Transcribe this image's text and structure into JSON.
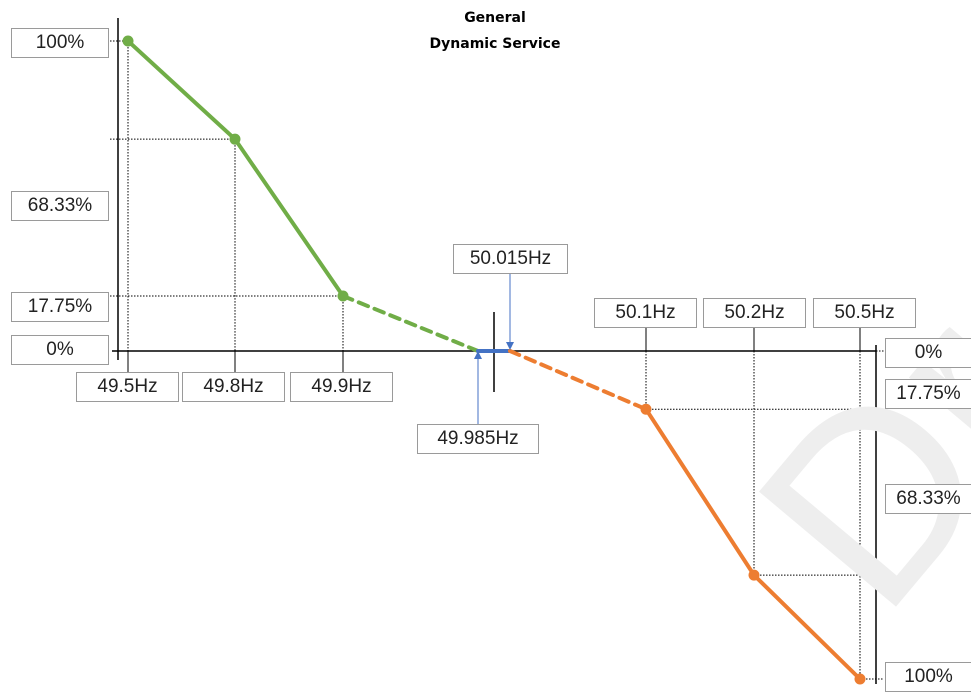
{
  "chart_data": {
    "type": "line",
    "title": "General",
    "subtitle": "Dynamic Service",
    "colors": {
      "low": "#70ad47",
      "high": "#ed7d31",
      "deadband": "#4472c4"
    },
    "series": [
      {
        "side": "low",
        "x": [
          "49.5Hz",
          "49.8Hz",
          "49.9Hz"
        ],
        "y": [
          "100%",
          "68.33%",
          "17.75%"
        ],
        "values": [
          100,
          68.33,
          17.75
        ],
        "style": "solid"
      },
      {
        "side": "low",
        "x": [
          "49.9Hz",
          "49.985Hz"
        ],
        "values": [
          17.75,
          0
        ],
        "style": "dashed"
      },
      {
        "side": "deadband",
        "x": [
          "49.985Hz",
          "50.015Hz"
        ],
        "values": [
          0,
          0
        ],
        "style": "solid"
      },
      {
        "side": "high",
        "x": [
          "50.015Hz",
          "50.1Hz"
        ],
        "values": [
          0,
          17.75
        ],
        "style": "dashed"
      },
      {
        "side": "high",
        "x": [
          "50.1Hz",
          "50.2Hz",
          "50.5Hz"
        ],
        "y": [
          "17.75%",
          "68.33%",
          "100%"
        ],
        "values": [
          17.75,
          68.33,
          100
        ],
        "style": "solid"
      }
    ],
    "labels": {
      "left_y": [
        "100%",
        "68.33%",
        "17.75%",
        "0%"
      ],
      "right_y": [
        "0%",
        "17.75%",
        "68.33%",
        "100%"
      ],
      "low_x": [
        "49.5Hz",
        "49.8Hz",
        "49.9Hz"
      ],
      "high_x": [
        "50.1Hz",
        "50.2Hz",
        "50.5Hz"
      ],
      "deadband_low": "49.985Hz",
      "deadband_high": "50.015Hz"
    },
    "watermark": "Dra"
  }
}
